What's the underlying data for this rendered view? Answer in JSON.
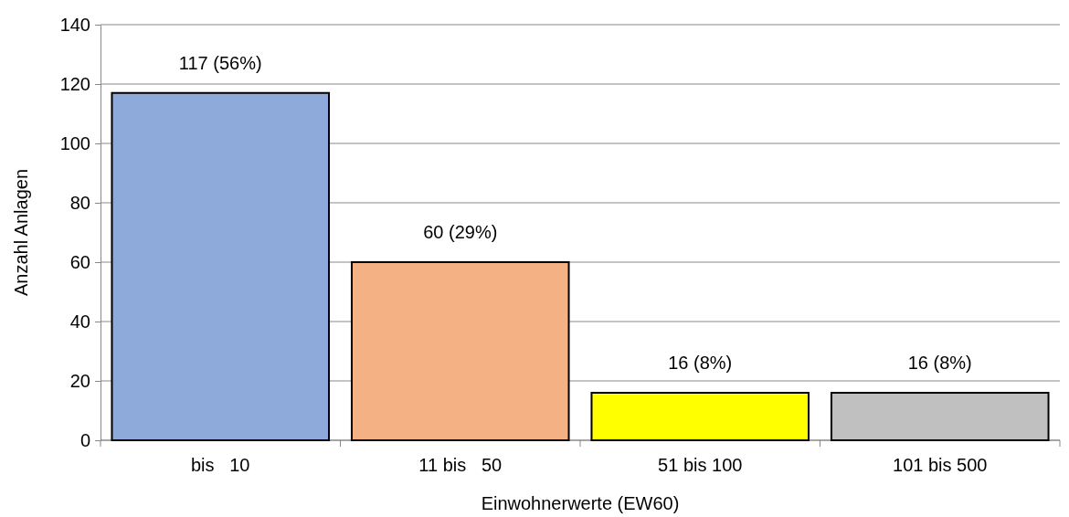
{
  "chart_data": {
    "type": "bar",
    "xlabel": "Einwohnerwerte (EW60)",
    "ylabel": "Anzahl Anlagen",
    "categories": [
      "bis   10",
      "11 bis   50",
      "51 bis 100",
      "101 bis 500"
    ],
    "values": [
      117,
      60,
      16,
      16
    ],
    "value_labels": [
      "117 (56%)",
      "60 (29%)",
      "16 (8%)",
      "16 (8%)"
    ],
    "colors": [
      "#8eaadb",
      "#f4b183",
      "#ffff00",
      "#c0c0c0"
    ],
    "ylim": [
      0,
      140
    ],
    "yticks": [
      0,
      20,
      40,
      60,
      80,
      100,
      120,
      140
    ],
    "grid": "y"
  }
}
